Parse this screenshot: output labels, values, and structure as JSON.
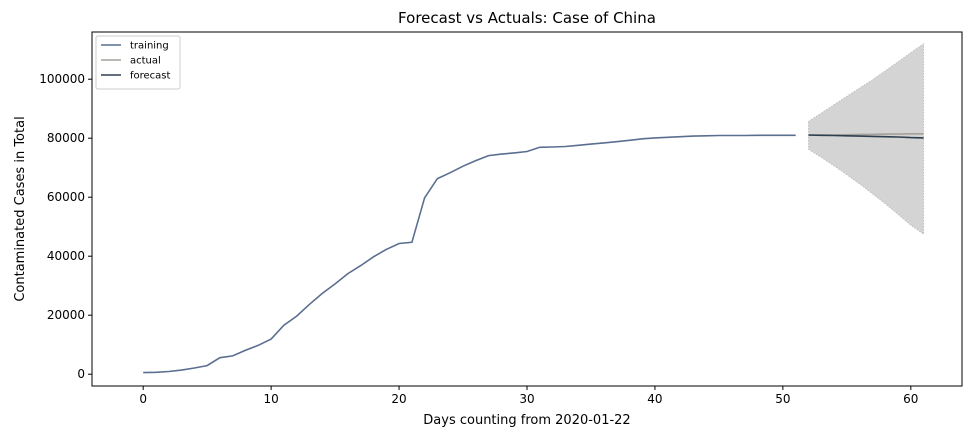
{
  "chart_data": {
    "type": "line",
    "title": "Forecast vs Actuals: Case of China",
    "xlabel": "Days counting from 2020-01-22",
    "ylabel": "Contaminated Cases in Total",
    "xlim": [
      -4,
      64
    ],
    "ylim": [
      -4000,
      116000
    ],
    "xticks": [
      0,
      10,
      20,
      30,
      40,
      50,
      60
    ],
    "yticks": [
      0,
      20000,
      40000,
      60000,
      80000,
      100000
    ],
    "grid": false,
    "legend_position": "top-left",
    "series": [
      {
        "name": "training",
        "color": "#5a6f8f",
        "x": [
          0,
          1,
          2,
          3,
          4,
          5,
          6,
          7,
          8,
          9,
          10,
          11,
          12,
          13,
          14,
          15,
          16,
          17,
          18,
          19,
          20,
          21,
          22,
          23,
          24,
          25,
          26,
          27,
          28,
          29,
          30,
          31,
          32,
          33,
          34,
          35,
          36,
          37,
          38,
          39,
          40,
          41,
          42,
          43,
          44,
          45,
          46,
          47,
          48,
          49,
          50,
          51
        ],
        "y": [
          550,
          650,
          900,
          1400,
          2100,
          2900,
          5600,
          6200,
          8100,
          9800,
          11900,
          16600,
          19700,
          23700,
          27400,
          30600,
          34100,
          36800,
          39800,
          42300,
          44300,
          44700,
          59800,
          66300,
          68300,
          70500,
          72400,
          74100,
          74600,
          75000,
          75500,
          76900,
          77000,
          77200,
          77600,
          78000,
          78400,
          78800,
          79300,
          79800,
          80100,
          80300,
          80500,
          80700,
          80800,
          80900,
          80900,
          80900,
          81000,
          81000,
          81000,
          81000
        ]
      },
      {
        "name": "actual",
        "color": "#a6a09a",
        "x": [
          52,
          53,
          54,
          55,
          56,
          57,
          58,
          59,
          60,
          61
        ],
        "y": [
          81000,
          81100,
          81100,
          81200,
          81300,
          81300,
          81400,
          81400,
          81500,
          81500
        ]
      },
      {
        "name": "forecast",
        "color": "#2e3f4f",
        "x": [
          52,
          53,
          54,
          55,
          56,
          57,
          58,
          59,
          60,
          61
        ],
        "y": [
          81100,
          81000,
          80900,
          80800,
          80700,
          80600,
          80500,
          80400,
          80200,
          80100
        ]
      }
    ],
    "confidence_band": {
      "color": "#d3d4d3",
      "x": [
        52,
        53,
        54,
        55,
        56,
        57,
        58,
        59,
        60,
        61
      ],
      "lower": [
        76200,
        73500,
        70600,
        67600,
        64500,
        61200,
        57800,
        54200,
        50500,
        47500
      ],
      "upper": [
        85700,
        88500,
        91400,
        94200,
        97000,
        99800,
        102800,
        105900,
        109000,
        112000
      ]
    }
  }
}
